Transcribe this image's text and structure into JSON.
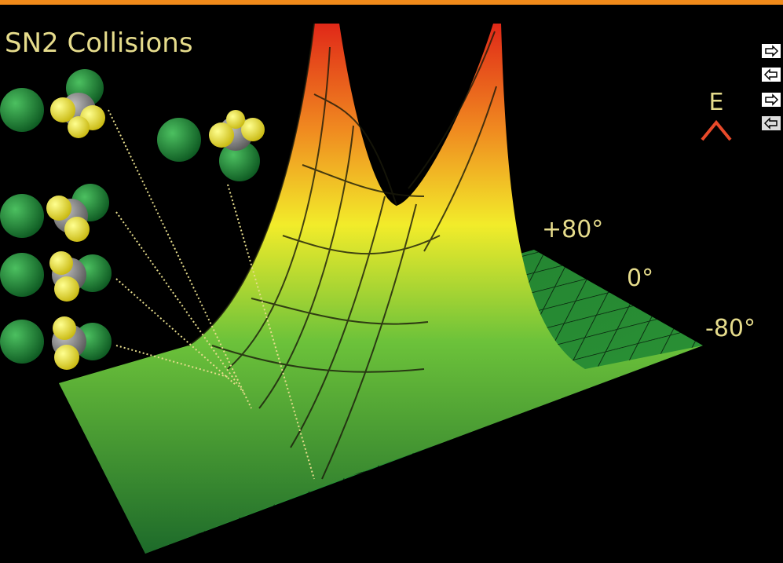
{
  "header": {
    "title": "SN2 Collisions"
  },
  "energy_axis": {
    "label": "E"
  },
  "angle_labels": [
    "+80°",
    "0°",
    "-80°"
  ]
}
